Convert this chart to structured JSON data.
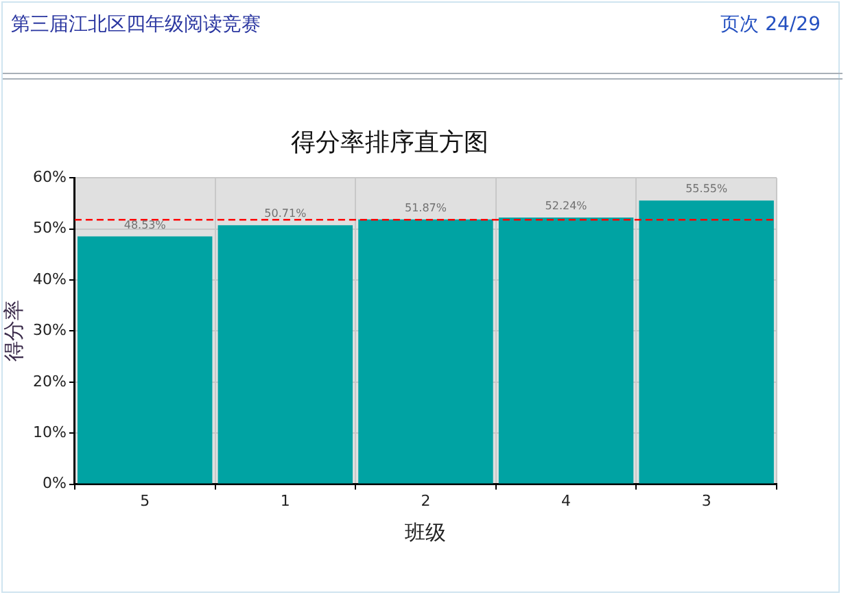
{
  "chart_data": {
    "type": "bar",
    "title": "得分率排序直方图",
    "xlabel": "班级",
    "ylabel": "得分率",
    "annotations": [
      "第三届江北区四年级阅读竞赛",
      "页次 24/29"
    ],
    "categories": [
      "5",
      "1",
      "2",
      "4",
      "3"
    ],
    "values": [
      48.53,
      50.71,
      51.87,
      52.24,
      55.55
    ],
    "color": "#00a3a3",
    "value_labels": [
      "48.53%",
      "50.71%",
      "51.87%",
      "52.24%",
      "55.55%"
    ],
    "ylim": [
      0,
      60
    ],
    "yticks": [
      {
        "value": 0,
        "label": "0%"
      },
      {
        "value": 10,
        "label": "10%"
      },
      {
        "value": 20,
        "label": "20%"
      },
      {
        "value": 30,
        "label": "30%"
      },
      {
        "value": 40,
        "label": "40%"
      },
      {
        "value": 50,
        "label": "50%"
      },
      {
        "value": 60,
        "label": "60%"
      }
    ],
    "grid": true,
    "ref_lines": [
      {
        "axis": "y",
        "value": 51.8,
        "color": "#ff0000",
        "line_style": "dashed"
      }
    ]
  }
}
